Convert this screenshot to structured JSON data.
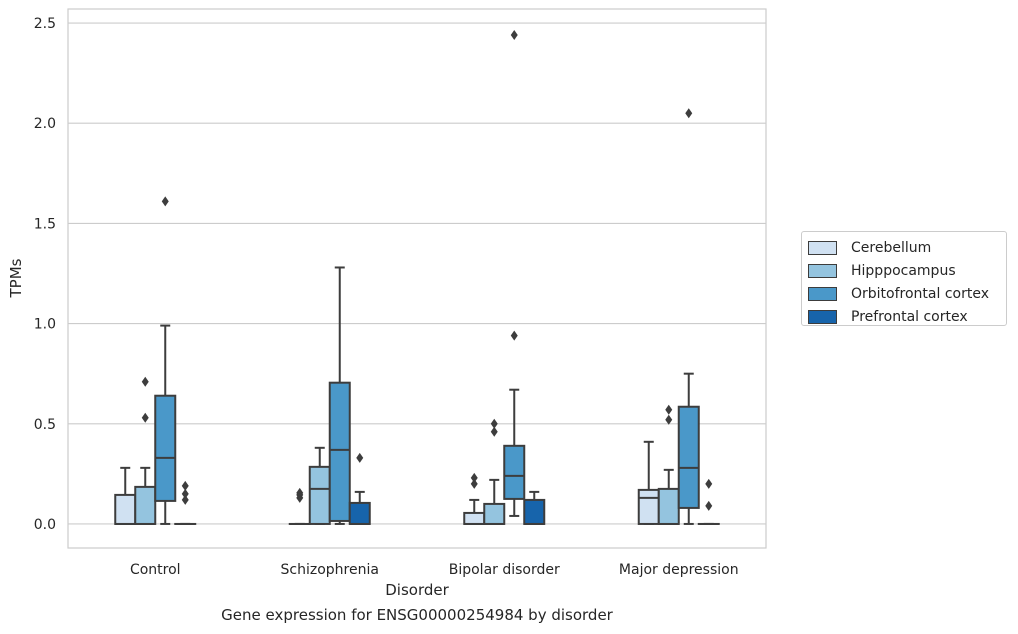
{
  "caption": "Gene expression for ENSG00000254984 by disorder",
  "chart_data": {
    "type": "box",
    "xlabel": "Disorder",
    "ylabel": "TPMs",
    "ylim": [
      -0.12,
      2.57
    ],
    "yticks": [
      "0.0",
      "0.5",
      "1.0",
      "1.5",
      "2.0",
      "2.5"
    ],
    "categories": [
      "Control",
      "Schizophrenia",
      "Bipolar disorder",
      "Major depression"
    ],
    "grid": true,
    "legend_position": "right",
    "series": [
      {
        "name": "Cerebellum",
        "color": "#d0e1f2",
        "boxes": [
          {
            "q1": 0.0,
            "median": 0.0,
            "q3": 0.145,
            "whisker_low": 0.0,
            "whisker_high": 0.28,
            "outliers": []
          },
          {
            "q1": 0.0,
            "median": 0.0,
            "q3": 0.0,
            "whisker_low": 0.0,
            "whisker_high": 0.0,
            "outliers": [
              0.13,
              0.145,
              0.155
            ]
          },
          {
            "q1": 0.0,
            "median": 0.0,
            "q3": 0.055,
            "whisker_low": 0.0,
            "whisker_high": 0.12,
            "outliers": [
              0.2,
              0.23
            ]
          },
          {
            "q1": 0.0,
            "median": 0.13,
            "q3": 0.17,
            "whisker_low": 0.0,
            "whisker_high": 0.41,
            "outliers": []
          }
        ]
      },
      {
        "name": "Hipppocampus",
        "color": "#94c4df",
        "boxes": [
          {
            "q1": 0.0,
            "median": 0.0,
            "q3": 0.185,
            "whisker_low": 0.0,
            "whisker_high": 0.28,
            "outliers": [
              0.53,
              0.71
            ]
          },
          {
            "q1": 0.0,
            "median": 0.175,
            "q3": 0.285,
            "whisker_low": 0.0,
            "whisker_high": 0.38,
            "outliers": []
          },
          {
            "q1": 0.0,
            "median": 0.0,
            "q3": 0.1,
            "whisker_low": 0.0,
            "whisker_high": 0.22,
            "outliers": [
              0.46,
              0.5
            ]
          },
          {
            "q1": 0.0,
            "median": 0.0,
            "q3": 0.175,
            "whisker_low": 0.0,
            "whisker_high": 0.27,
            "outliers": [
              0.52,
              0.57
            ]
          }
        ]
      },
      {
        "name": "Orbitofrontal cortex",
        "color": "#4a98c9",
        "boxes": [
          {
            "q1": 0.115,
            "median": 0.33,
            "q3": 0.64,
            "whisker_low": 0.0,
            "whisker_high": 0.99,
            "outliers": [
              1.61
            ]
          },
          {
            "q1": 0.015,
            "median": 0.37,
            "q3": 0.705,
            "whisker_low": 0.0,
            "whisker_high": 1.28,
            "outliers": []
          },
          {
            "q1": 0.125,
            "median": 0.24,
            "q3": 0.39,
            "whisker_low": 0.04,
            "whisker_high": 0.67,
            "outliers": [
              0.94,
              2.44
            ]
          },
          {
            "q1": 0.08,
            "median": 0.28,
            "q3": 0.585,
            "whisker_low": 0.0,
            "whisker_high": 0.75,
            "outliers": [
              2.05
            ]
          }
        ]
      },
      {
        "name": "Prefrontal cortex",
        "color": "#1764ab",
        "boxes": [
          {
            "q1": 0.0,
            "median": 0.0,
            "q3": 0.0,
            "whisker_low": 0.0,
            "whisker_high": 0.0,
            "outliers": [
              0.12,
              0.15,
              0.19
            ]
          },
          {
            "q1": 0.0,
            "median": 0.0,
            "q3": 0.105,
            "whisker_low": 0.0,
            "whisker_high": 0.16,
            "outliers": [
              0.33
            ]
          },
          {
            "q1": 0.0,
            "median": 0.0,
            "q3": 0.12,
            "whisker_low": 0.0,
            "whisker_high": 0.16,
            "outliers": []
          },
          {
            "q1": 0.0,
            "median": 0.0,
            "q3": 0.0,
            "whisker_low": 0.0,
            "whisker_high": 0.0,
            "outliers": [
              0.09,
              0.2
            ]
          }
        ]
      }
    ]
  }
}
